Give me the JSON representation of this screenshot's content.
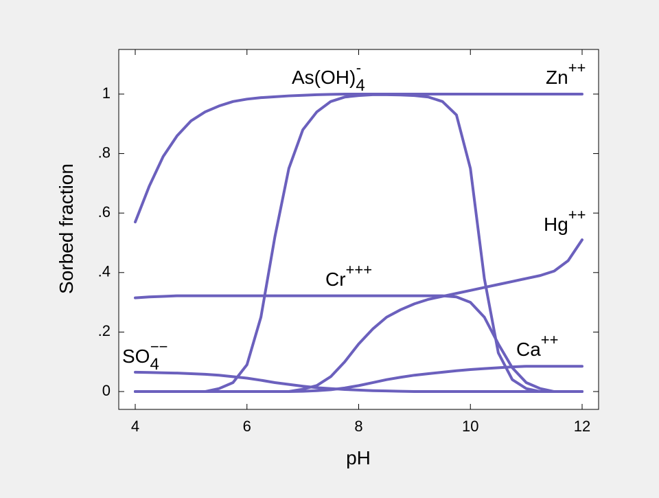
{
  "chart_data": {
    "type": "line",
    "x_label": "pH",
    "y_label": "Sorbed fraction",
    "xlim": [
      3.705,
      12.295
    ],
    "ylim": [
      -0.06,
      1.15
    ],
    "xticks": [
      4,
      6,
      8,
      10,
      12
    ],
    "yticks": [
      0,
      {
        "value": 0.2,
        "label": ".2"
      },
      {
        "value": 0.4,
        "label": ".4"
      },
      {
        "value": 0.6,
        "label": ".6"
      },
      {
        "value": 0.8,
        "label": ".8"
      },
      1
    ],
    "x": [
      4,
      4.25,
      4.5,
      4.75,
      5,
      5.25,
      5.5,
      5.75,
      6,
      6.25,
      6.5,
      6.75,
      7,
      7.25,
      7.5,
      7.75,
      8,
      8.25,
      8.5,
      8.75,
      9,
      9.25,
      9.5,
      9.75,
      10,
      10.25,
      10.5,
      10.75,
      11,
      11.25,
      11.5,
      11.75,
      12
    ],
    "series": [
      {
        "name": "Zn",
        "sup": "++",
        "color": "#6b60bd",
        "values": [
          0.57,
          0.69,
          0.79,
          0.86,
          0.91,
          0.94,
          0.96,
          0.975,
          0.983,
          0.988,
          0.991,
          0.994,
          0.996,
          0.998,
          0.999,
          1,
          1,
          1,
          1,
          1,
          1,
          1,
          1,
          1,
          1,
          1,
          1,
          1,
          1,
          1,
          1,
          1,
          1
        ]
      },
      {
        "name": "As(OH)",
        "sub": "4",
        "sup": "-",
        "color": "#6b60bd",
        "values": [
          0,
          0,
          0,
          0,
          0,
          0,
          0.01,
          0.03,
          0.09,
          0.25,
          0.52,
          0.75,
          0.88,
          0.94,
          0.975,
          0.99,
          0.995,
          0.998,
          0.998,
          0.997,
          0.995,
          0.99,
          0.975,
          0.93,
          0.75,
          0.38,
          0.13,
          0.04,
          0.01,
          0,
          0,
          0,
          0
        ]
      },
      {
        "name": "Hg",
        "sup": "++",
        "color": "#6b60bd",
        "values": [
          0,
          0,
          0,
          0,
          0,
          0,
          0,
          0,
          0,
          0,
          0,
          0,
          0.008,
          0.02,
          0.05,
          0.1,
          0.16,
          0.21,
          0.25,
          0.275,
          0.295,
          0.31,
          0.32,
          0.33,
          0.34,
          0.35,
          0.36,
          0.37,
          0.38,
          0.39,
          0.405,
          0.44,
          0.51
        ]
      },
      {
        "name": "Cr",
        "sup": "+++",
        "color": "#6b60bd",
        "values": [
          0.315,
          0.318,
          0.32,
          0.322,
          0.322,
          0.322,
          0.322,
          0.322,
          0.322,
          0.322,
          0.322,
          0.322,
          0.322,
          0.322,
          0.322,
          0.322,
          0.322,
          0.322,
          0.322,
          0.322,
          0.322,
          0.322,
          0.322,
          0.318,
          0.3,
          0.25,
          0.16,
          0.08,
          0.03,
          0.01,
          0,
          0,
          0
        ]
      },
      {
        "name": "Ca",
        "sup": "++",
        "color": "#6b60bd",
        "values": [
          0,
          0,
          0,
          0,
          0,
          0,
          0,
          0,
          0,
          0,
          0,
          0,
          0.001,
          0.003,
          0.006,
          0.012,
          0.02,
          0.03,
          0.04,
          0.048,
          0.055,
          0.06,
          0.065,
          0.07,
          0.074,
          0.077,
          0.08,
          0.083,
          0.085,
          0.085,
          0.085,
          0.085,
          0.085
        ]
      },
      {
        "name": "SO",
        "sub": "4",
        "sup": "−−",
        "color": "#6b60bd",
        "values": [
          0.065,
          0.064,
          0.063,
          0.062,
          0.06,
          0.058,
          0.055,
          0.05,
          0.045,
          0.038,
          0.03,
          0.024,
          0.018,
          0.013,
          0.01,
          0.007,
          0.005,
          0.003,
          0.002,
          0.001,
          0,
          0,
          0,
          0,
          0,
          0,
          0,
          0,
          0,
          0,
          0,
          0,
          0
        ]
      }
    ]
  }
}
